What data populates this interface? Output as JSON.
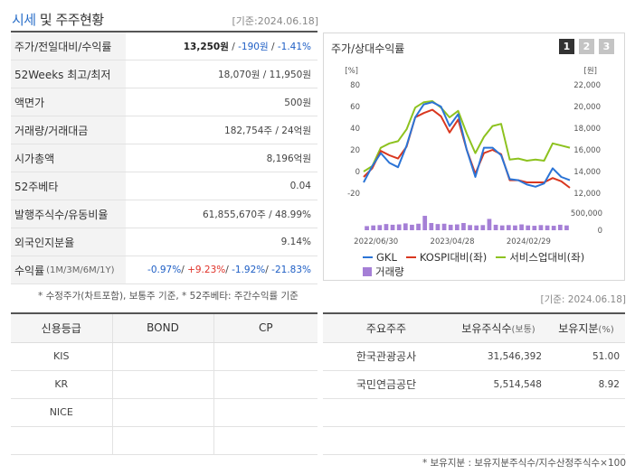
{
  "header": {
    "title_a": "시세",
    "title_b": "및 주주현황",
    "base_date": "[기준:2024.06.18]"
  },
  "summary": [
    {
      "label": "주가/전일대비/수익률",
      "price": "13,250원",
      "sep1": " / ",
      "change": "-190원",
      "sep2": " / ",
      "rate": "-1.41%"
    },
    {
      "label": "52Weeks 최고/최저",
      "value": "18,070원 / 11,950원"
    },
    {
      "label": "액면가",
      "value": "500원"
    },
    {
      "label": "거래량/거래대금",
      "value": "182,754주 / 24억원"
    },
    {
      "label": "시가총액",
      "value": "8,196억원"
    },
    {
      "label": "52주베타",
      "value": "0.04"
    },
    {
      "label": "발행주식수/유동비율",
      "value": "61,855,670주 / 48.99%"
    },
    {
      "label": "외국인지분율",
      "value": "9.14%"
    },
    {
      "label": "수익률",
      "label_sub": "(1M/3M/6M/1Y)",
      "r1": "-0.97%",
      "r2": "+9.23%",
      "r3": "-1.92%",
      "r4": "-21.83%",
      "sep": "/ "
    }
  ],
  "note1": "* 수정주가(차트포함), 보통주 기준, * 52주베타: 주간수익률 기준",
  "chart_panel": {
    "title": "주가/상대수익률",
    "buttons": [
      "1",
      "2",
      "3"
    ],
    "legend": {
      "gkl": "GKL",
      "kospi": "KOSPI대비(좌)",
      "service": "서비스업대비(좌)",
      "volume": "거래량"
    }
  },
  "chart_data": {
    "type": "line",
    "left_axis_unit": "[%]",
    "right_axis_unit": "[원]",
    "left_ticks": [
      "80",
      "60",
      "40",
      "20",
      "0",
      "-20"
    ],
    "right_ticks": [
      "22,000",
      "20,000",
      "18,000",
      "16,000",
      "14,000",
      "12,000"
    ],
    "volume_ticks": [
      "500,000",
      "0"
    ],
    "x_ticks": [
      "2022/06/30",
      "2023/04/28",
      "2024/02/29"
    ],
    "ylim_left": [
      -20,
      80
    ],
    "ylim_right": [
      12000,
      22000
    ],
    "colors": {
      "gkl": "#2b74d6",
      "kospi": "#d9371f",
      "service": "#8dc21f",
      "volume": "#a57fd6"
    },
    "series": [
      {
        "name": "GKL",
        "values": [
          -10,
          5,
          17,
          8,
          4,
          24,
          50,
          62,
          64,
          60,
          42,
          53,
          20,
          -5,
          22,
          22,
          15,
          -7,
          -8,
          -12,
          -14,
          -11,
          3,
          -5,
          -8
        ]
      },
      {
        "name": "KOSPI대비(좌)",
        "values": [
          -5,
          3,
          19,
          15,
          12,
          23,
          50,
          54,
          57,
          51,
          36,
          48,
          20,
          -2,
          17,
          20,
          16,
          -8,
          -8,
          -10,
          -10,
          -10,
          -6,
          -9,
          -15
        ]
      },
      {
        "name": "서비스업대비(좌)",
        "values": [
          0,
          5,
          22,
          26,
          28,
          39,
          59,
          64,
          65,
          59,
          50,
          56,
          35,
          17,
          32,
          42,
          44,
          11,
          12,
          10,
          11,
          10,
          26,
          24,
          22
        ]
      },
      {
        "name": "거래량",
        "values": [
          120000,
          140000,
          150000,
          180000,
          160000,
          170000,
          200000,
          160000,
          190000,
          420000,
          210000,
          180000,
          190000,
          160000,
          170000,
          210000,
          150000,
          140000,
          150000,
          330000,
          160000,
          140000,
          150000,
          140000,
          170000,
          140000,
          130000,
          150000,
          140000,
          130000,
          160000,
          140000
        ]
      }
    ]
  },
  "base_date2": "[기준: 2024.06.18]",
  "credit": {
    "headers": [
      "신용등급",
      "BOND",
      "CP"
    ],
    "rows": [
      [
        "KIS",
        "",
        ""
      ],
      [
        "KR",
        "",
        ""
      ],
      [
        "NICE",
        "",
        ""
      ],
      [
        "",
        "",
        ""
      ]
    ]
  },
  "holders": {
    "h1": "주요주주",
    "h2": "보유주식수",
    "h2_sub": "(보통)",
    "h3": "보유지분",
    "h3_sub": "(%)",
    "rows": [
      {
        "name": "한국관광공사",
        "shares": "31,546,392",
        "pct": "51.00"
      },
      {
        "name": "국민연금공단",
        "shares": "5,514,548",
        "pct": "8.92"
      },
      {
        "name": "",
        "shares": "",
        "pct": ""
      },
      {
        "name": "",
        "shares": "",
        "pct": ""
      }
    ]
  },
  "note2": "* 보유지분 : 보유지분주식수/지수산정주식수×100"
}
